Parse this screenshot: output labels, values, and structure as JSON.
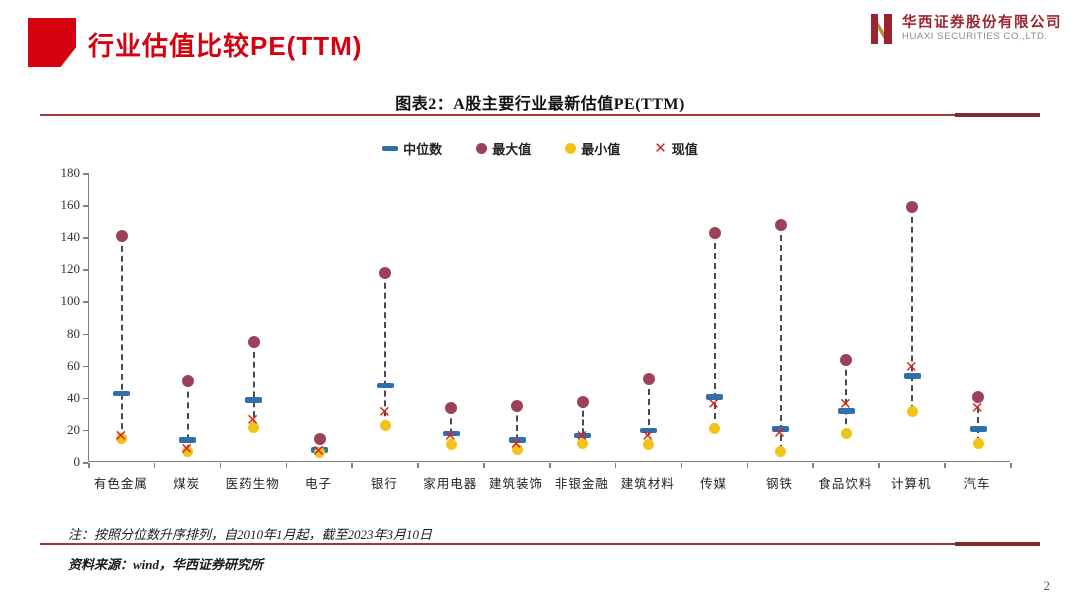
{
  "page": {
    "number": "2"
  },
  "header": {
    "title": "行业估值比较PE(TTM)",
    "logo": {
      "company_cn": "华西证券股份有限公司",
      "company_en": "HUAXI SECURITIES CO.,LTD.",
      "mark_icon": "huaxi-h-monogram"
    }
  },
  "figure": {
    "title": "图表2：A股主要行业最新估值PE(TTM)",
    "note": "注：按照分位数升序排列，自2010年1月起，截至2023年3月10日",
    "source": "资料来源：wind，华西证券研究所"
  },
  "theme": {
    "accent_red": "#d7000f",
    "rule_red": "#a03a3a",
    "axis_gray": "#808080"
  },
  "chart_data": {
    "type": "scatter",
    "subtype": "dumbbell-range",
    "title": "A股主要行业最新估值PE(TTM)",
    "xlabel": "",
    "ylabel": "",
    "ylim": [
      0,
      180
    ],
    "yticks": [
      0,
      20,
      40,
      60,
      80,
      100,
      120,
      140,
      160,
      180
    ],
    "grid": false,
    "legend_position": "top",
    "connector_color": "#4f4550",
    "categories": [
      "有色金属",
      "煤炭",
      "医药生物",
      "电子",
      "银行",
      "家用电器",
      "建筑装饰",
      "非银金融",
      "建筑材料",
      "传媒",
      "钢铁",
      "食品饮料",
      "计算机",
      "汽车"
    ],
    "series": [
      {
        "name": "中位数",
        "marker": "dash",
        "color": "#2e6fae",
        "values": [
          42,
          13,
          38,
          7,
          47,
          17,
          13,
          16,
          19,
          40,
          20,
          31,
          53,
          20
        ]
      },
      {
        "name": "最大值",
        "marker": "circle",
        "color": "#9c4258",
        "values": [
          140,
          50,
          74,
          14,
          117,
          33,
          34,
          37,
          51,
          142,
          147,
          63,
          158,
          40
        ]
      },
      {
        "name": "最小值",
        "marker": "circle",
        "color": "#f2c319",
        "values": [
          14,
          6,
          21,
          5,
          22,
          10,
          7,
          11,
          10,
          20,
          6,
          17,
          31,
          11
        ]
      },
      {
        "name": "现值",
        "marker": "x",
        "color": "#d2281e",
        "values": [
          15,
          7,
          25,
          6,
          30,
          15,
          10,
          15,
          15,
          35,
          17,
          35,
          58,
          33
        ]
      }
    ]
  }
}
